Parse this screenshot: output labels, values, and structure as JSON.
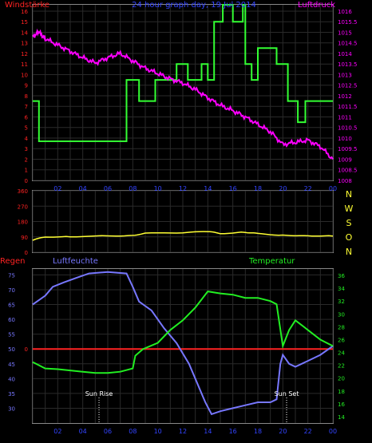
{
  "title": "24 hour graph day, 19 Jul 2014",
  "chart_data": [
    {
      "type": "line",
      "x_ticks": [
        "02",
        "04",
        "06",
        "08",
        "10",
        "12",
        "14",
        "16",
        "18",
        "20",
        "22",
        "00"
      ],
      "x_range": [
        0,
        24
      ],
      "left_axis": {
        "label": "Windstärke",
        "ylim": [
          0,
          16.6
        ],
        "ticks": [
          "0",
          "1",
          "2",
          "3",
          "4",
          "5",
          "6",
          "7",
          "8",
          "9",
          "10",
          "11",
          "12",
          "13",
          "14",
          "15",
          "16"
        ]
      },
      "right_axis": {
        "label": "Luftdruck",
        "ylim": [
          1008,
          1016.3
        ],
        "ticks": [
          "1008",
          "1008.5",
          "1009",
          "1009.5",
          "1010",
          "1010.5",
          "1011",
          "1011.5",
          "1012",
          "1012.5",
          "1013",
          "1013.5",
          "1014",
          "1014.5",
          "1015",
          "1015.5",
          "1016"
        ]
      },
      "series": [
        {
          "name": "Windstärke",
          "axis": "left",
          "color": "#33ff33",
          "step": true,
          "points": [
            [
              0,
              7.5
            ],
            [
              0.5,
              7.5
            ],
            [
              0.5,
              3.7
            ],
            [
              7.5,
              3.7
            ],
            [
              7.5,
              9.5
            ],
            [
              8.5,
              9.5
            ],
            [
              8.5,
              7.5
            ],
            [
              9.8,
              7.5
            ],
            [
              9.8,
              9.5
            ],
            [
              11.5,
              9.5
            ],
            [
              11.5,
              11
            ],
            [
              12.4,
              11
            ],
            [
              12.4,
              9.5
            ],
            [
              13.5,
              9.5
            ],
            [
              13.5,
              11
            ],
            [
              14,
              11
            ],
            [
              14,
              9.5
            ],
            [
              14.5,
              9.5
            ],
            [
              14.5,
              15
            ],
            [
              15.2,
              15
            ],
            [
              15.2,
              17
            ],
            [
              16,
              17
            ],
            [
              16,
              15
            ],
            [
              16.8,
              15
            ],
            [
              16.8,
              17
            ],
            [
              17,
              17
            ],
            [
              17,
              11
            ],
            [
              17.5,
              11
            ],
            [
              17.5,
              9.5
            ],
            [
              18,
              9.5
            ],
            [
              18,
              12.5
            ],
            [
              19.5,
              12.5
            ],
            [
              19.5,
              11
            ],
            [
              20.4,
              11
            ],
            [
              20.4,
              7.5
            ],
            [
              21.2,
              7.5
            ],
            [
              21.2,
              5.5
            ],
            [
              21.8,
              5.5
            ],
            [
              21.8,
              7.5
            ],
            [
              24,
              7.5
            ]
          ]
        },
        {
          "name": "Luftdruck",
          "axis": "right",
          "color": "#ff00ff",
          "points": [
            [
              0,
              1014.8
            ],
            [
              0.5,
              1015.0
            ],
            [
              1,
              1014.7
            ],
            [
              2,
              1014.4
            ],
            [
              3,
              1014.1
            ],
            [
              4,
              1013.8
            ],
            [
              5,
              1013.55
            ],
            [
              6,
              1013.8
            ],
            [
              7,
              1014.0
            ],
            [
              8,
              1013.65
            ],
            [
              9,
              1013.3
            ],
            [
              10,
              1013.05
            ],
            [
              11,
              1012.8
            ],
            [
              12,
              1012.6
            ],
            [
              13,
              1012.3
            ],
            [
              14,
              1011.9
            ],
            [
              15,
              1011.55
            ],
            [
              16,
              1011.3
            ],
            [
              17,
              1011.0
            ],
            [
              18,
              1010.65
            ],
            [
              19,
              1010.3
            ],
            [
              20,
              1009.7
            ],
            [
              21,
              1009.8
            ],
            [
              22,
              1009.9
            ],
            [
              23,
              1009.6
            ],
            [
              24,
              1009.0
            ]
          ]
        }
      ]
    },
    {
      "type": "line",
      "x_range": [
        0,
        24
      ],
      "left_axis": {
        "ylim": [
          0,
          360
        ],
        "ticks": [
          "0",
          "90",
          "180",
          "270",
          "360"
        ]
      },
      "right_labels": [
        "N",
        "W",
        "S",
        "O",
        "N"
      ],
      "series": [
        {
          "name": "Windrichtung",
          "color": "#ffff33",
          "points": [
            [
              0,
              70
            ],
            [
              1,
              90
            ],
            [
              3,
              92
            ],
            [
              6,
              95
            ],
            [
              8,
              100
            ],
            [
              9,
              110
            ],
            [
              12,
              115
            ],
            [
              14,
              120
            ],
            [
              15,
              110
            ],
            [
              17,
              118
            ],
            [
              18,
              108
            ],
            [
              20,
              100
            ],
            [
              22,
              98
            ],
            [
              24,
              95
            ]
          ]
        }
      ]
    },
    {
      "type": "line",
      "x_ticks": [
        "02",
        "04",
        "06",
        "08",
        "10",
        "12",
        "14",
        "16",
        "18",
        "20",
        "22",
        "00"
      ],
      "x_range": [
        0,
        24
      ],
      "left_axis": {
        "ylim": [
          25,
          77
        ],
        "ticks": [
          "30",
          "35",
          "40",
          "45",
          "50",
          "55",
          "60",
          "65",
          "70",
          "75"
        ]
      },
      "right_axis": {
        "ylim": [
          13,
          37
        ],
        "ticks": [
          "14",
          "16",
          "18",
          "20",
          "22",
          "24",
          "26",
          "28",
          "30",
          "32",
          "34",
          "36"
        ]
      },
      "legend": {
        "left": "Regen",
        "middle": "Luftfeuchte",
        "right": "Temperatur"
      },
      "annotations": [
        {
          "text": "Sun Rise",
          "x": 5.3
        },
        {
          "text": "Sun Set",
          "x": 20.3
        }
      ],
      "series": [
        {
          "name": "Regen",
          "color": "#ff2222",
          "axis": "left",
          "values_constant": 0
        },
        {
          "name": "Luftfeuchte",
          "axis": "left",
          "color": "#7777ff",
          "points": [
            [
              0,
              65
            ],
            [
              1,
              68
            ],
            [
              1.6,
              71
            ],
            [
              2.5,
              72.5
            ],
            [
              3.5,
              74
            ],
            [
              4.5,
              75.5
            ],
            [
              6,
              76
            ],
            [
              7.5,
              75.5
            ],
            [
              8,
              71
            ],
            [
              8.5,
              66
            ],
            [
              9.5,
              63
            ],
            [
              10.5,
              57
            ],
            [
              11.5,
              52
            ],
            [
              12.5,
              45
            ],
            [
              13.2,
              38
            ],
            [
              13.8,
              32
            ],
            [
              14.3,
              28
            ],
            [
              15,
              29
            ],
            [
              16,
              30
            ],
            [
              17,
              31
            ],
            [
              18,
              32
            ],
            [
              19,
              32
            ],
            [
              19.5,
              33
            ],
            [
              19.8,
              45
            ],
            [
              20,
              48
            ],
            [
              20.5,
              45
            ],
            [
              21,
              44
            ],
            [
              22,
              46
            ],
            [
              23,
              48
            ],
            [
              24,
              51
            ]
          ]
        },
        {
          "name": "Temperatur",
          "axis": "right",
          "color": "#22ee22",
          "points": [
            [
              0,
              22.5
            ],
            [
              1,
              21.5
            ],
            [
              2,
              21.4
            ],
            [
              3,
              21.2
            ],
            [
              4,
              21
            ],
            [
              5,
              20.8
            ],
            [
              6,
              20.8
            ],
            [
              7,
              21
            ],
            [
              8,
              21.5
            ],
            [
              8.2,
              23.5
            ],
            [
              8.8,
              24.5
            ],
            [
              10,
              25.5
            ],
            [
              11,
              27.5
            ],
            [
              12,
              29
            ],
            [
              13,
              31
            ],
            [
              14,
              33.5
            ],
            [
              15,
              33.2
            ],
            [
              16,
              33
            ],
            [
              17,
              32.5
            ],
            [
              18,
              32.5
            ],
            [
              19,
              32
            ],
            [
              19.5,
              31.5
            ],
            [
              20,
              25
            ],
            [
              20.5,
              27.5
            ],
            [
              21,
              29
            ],
            [
              22,
              27.5
            ],
            [
              23,
              26
            ],
            [
              24,
              25
            ]
          ]
        }
      ]
    }
  ]
}
